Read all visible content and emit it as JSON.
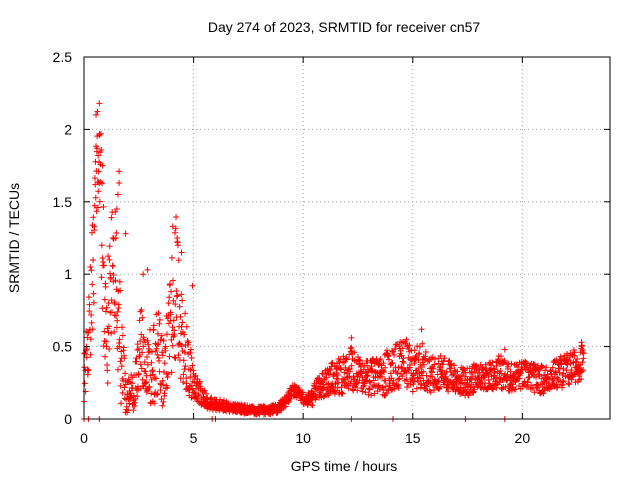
{
  "chart_data": {
    "type": "scatter",
    "title": "Day 274 of 2023, SRMTID for receiver cn57",
    "xlabel": "GPS time / hours",
    "ylabel": "SRMTID / TECUs",
    "xlim": [
      0,
      24
    ],
    "ylim": [
      0,
      2.5
    ],
    "xticks": [
      0,
      5,
      10,
      15,
      20
    ],
    "xtick_labels": [
      "0",
      "5",
      "10",
      "15",
      "20"
    ],
    "yticks": [
      0,
      0.5,
      1,
      1.5,
      2,
      2.5
    ],
    "ytick_labels": [
      "0",
      "0.5",
      "1",
      "1.5",
      "2",
      "2.5"
    ],
    "grid": true,
    "marker": "+",
    "point_color": "#ff0000",
    "series": [
      {
        "name": "SRMTID cn57",
        "x": [
          0.0,
          0.2,
          0.4,
          0.55,
          0.7,
          0.85,
          1.0,
          1.15,
          1.3,
          1.45,
          1.6,
          1.8,
          2.0,
          2.2,
          2.4,
          2.6,
          2.8,
          3.0,
          3.2,
          3.4,
          3.6,
          3.8,
          4.0,
          4.2,
          4.4,
          4.6,
          4.8,
          5.0,
          5.3,
          5.6,
          6.0,
          6.4,
          6.8,
          7.2,
          7.6,
          8.0,
          8.4,
          8.8,
          9.2,
          9.5,
          9.8,
          10.1,
          10.4,
          10.7,
          11.0,
          11.4,
          11.8,
          12.2,
          12.6,
          13.0,
          13.4,
          13.8,
          14.2,
          14.6,
          15.0,
          15.4,
          15.8,
          16.2,
          16.6,
          17.0,
          17.4,
          17.8,
          18.2,
          18.6,
          19.0,
          19.4,
          19.8,
          20.2,
          20.6,
          21.0,
          21.4,
          21.8,
          22.2,
          22.6,
          22.8
        ],
        "y": [
          0.25,
          0.6,
          1.0,
          1.6,
          1.8,
          1.2,
          0.5,
          0.8,
          1.1,
          1.0,
          0.6,
          0.3,
          0.15,
          0.2,
          0.25,
          0.5,
          0.3,
          0.35,
          0.4,
          0.45,
          0.3,
          0.5,
          0.7,
          0.9,
          0.6,
          0.45,
          0.35,
          0.25,
          0.18,
          0.12,
          0.1,
          0.09,
          0.08,
          0.07,
          0.06,
          0.06,
          0.06,
          0.07,
          0.12,
          0.2,
          0.18,
          0.12,
          0.15,
          0.22,
          0.25,
          0.28,
          0.3,
          0.35,
          0.3,
          0.28,
          0.3,
          0.32,
          0.35,
          0.4,
          0.33,
          0.38,
          0.3,
          0.33,
          0.3,
          0.27,
          0.25,
          0.28,
          0.3,
          0.3,
          0.33,
          0.28,
          0.3,
          0.3,
          0.28,
          0.27,
          0.3,
          0.33,
          0.35,
          0.38,
          0.42
        ],
        "spread": [
          0.15,
          0.3,
          0.45,
          0.5,
          0.45,
          0.5,
          0.4,
          0.45,
          0.45,
          0.45,
          0.5,
          0.25,
          0.12,
          0.15,
          0.2,
          0.3,
          0.25,
          0.3,
          0.3,
          0.3,
          0.25,
          0.3,
          0.4,
          0.5,
          0.35,
          0.3,
          0.2,
          0.12,
          0.08,
          0.05,
          0.04,
          0.04,
          0.03,
          0.03,
          0.03,
          0.03,
          0.03,
          0.03,
          0.04,
          0.04,
          0.04,
          0.04,
          0.06,
          0.08,
          0.1,
          0.12,
          0.13,
          0.15,
          0.12,
          0.12,
          0.14,
          0.16,
          0.16,
          0.18,
          0.14,
          0.16,
          0.12,
          0.12,
          0.12,
          0.1,
          0.1,
          0.1,
          0.1,
          0.1,
          0.12,
          0.1,
          0.1,
          0.1,
          0.1,
          0.1,
          0.1,
          0.12,
          0.12,
          0.12,
          0.12
        ]
      }
    ],
    "annotations": [
      {
        "x": 0.7,
        "y": 2.18
      },
      {
        "x": 0.55,
        "y": 2.1
      },
      {
        "x": 0.6,
        "y": 1.87
      },
      {
        "x": 0.65,
        "y": 1.82
      },
      {
        "x": 0.85,
        "y": 1.75
      },
      {
        "x": 1.6,
        "y": 1.71
      },
      {
        "x": 1.6,
        "y": 1.63
      },
      {
        "x": 0.7,
        "y": 1.63
      },
      {
        "x": 1.55,
        "y": 1.55
      },
      {
        "x": 1.5,
        "y": 1.45
      },
      {
        "x": 4.05,
        "y": 1.33
      },
      {
        "x": 4.25,
        "y": 1.25
      },
      {
        "x": 1.9,
        "y": 1.28
      },
      {
        "x": 4.45,
        "y": 1.15
      },
      {
        "x": 2.7,
        "y": 1.0
      },
      {
        "x": 2.9,
        "y": 1.03
      },
      {
        "x": 4.95,
        "y": 0.92
      },
      {
        "x": 15.4,
        "y": 0.62
      },
      {
        "x": 12.2,
        "y": 0.56
      },
      {
        "x": 22.7,
        "y": 0.53
      },
      {
        "x": 19.2,
        "y": 0.48
      },
      {
        "x": 0.0,
        "y": 0.0
      },
      {
        "x": 0.2,
        "y": 0.0
      },
      {
        "x": 0.7,
        "y": 0.0
      },
      {
        "x": 5.85,
        "y": 0.0
      },
      {
        "x": 6.0,
        "y": 0.0
      },
      {
        "x": 12.2,
        "y": 0.0
      },
      {
        "x": 14.1,
        "y": 0.0
      },
      {
        "x": 17.4,
        "y": 0.0
      },
      {
        "x": 19.2,
        "y": 0.0
      }
    ]
  }
}
